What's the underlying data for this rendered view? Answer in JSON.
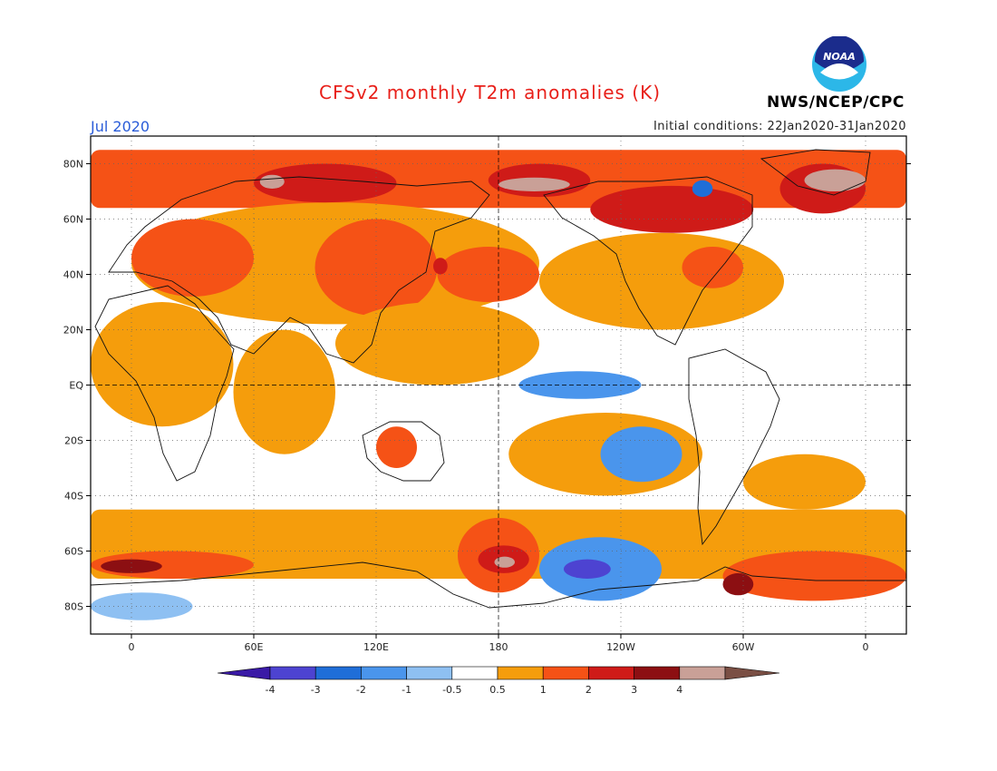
{
  "header": {
    "title": "CFSv2 monthly T2m anomalies (K)",
    "month": "Jul 2020",
    "initial_conditions": "Initial conditions: 22Jan2020-31Jan2020",
    "agency": "NWS/NCEP/CPC",
    "logo_text": "NOAA"
  },
  "map": {
    "projection": "equirectangular",
    "longitude_range": [
      -20,
      380
    ],
    "latitude_range": [
      -90,
      90
    ],
    "lat_ticks": [
      {
        "value": 80,
        "label": "80N"
      },
      {
        "value": 60,
        "label": "60N"
      },
      {
        "value": 40,
        "label": "40N"
      },
      {
        "value": 20,
        "label": "20N"
      },
      {
        "value": 0,
        "label": "EQ"
      },
      {
        "value": -20,
        "label": "20S"
      },
      {
        "value": -40,
        "label": "40S"
      },
      {
        "value": -60,
        "label": "60S"
      },
      {
        "value": -80,
        "label": "80S"
      }
    ],
    "lon_ticks": [
      {
        "value": 0,
        "label": "0"
      },
      {
        "value": 60,
        "label": "60E"
      },
      {
        "value": 120,
        "label": "120E"
      },
      {
        "value": 180,
        "label": "180"
      },
      {
        "value": 240,
        "label": "120W"
      },
      {
        "value": 300,
        "label": "60W"
      },
      {
        "value": 360,
        "label": "0"
      }
    ],
    "grid": "dotted",
    "colors": {
      "-4": "#3a1aa6",
      "-3": "#4d43d1",
      "-2": "#1f6ed8",
      "-1": "#4a95ec",
      "-0.5": "#8ec0f2",
      "0": "#ffffff",
      "0.5": "#f59d0c",
      "1": "#f55216",
      "2": "#cf1b18",
      "3": "#8c0f12",
      "4": "#c9a097",
      "max": "#7a4f44"
    },
    "anomaly_regions": [
      {
        "name": "arctic-band",
        "class": "1",
        "lon": [
          -20,
          380
        ],
        "lat": [
          64,
          85
        ]
      },
      {
        "name": "siberia-strong",
        "class": "2",
        "lon": [
          60,
          130
        ],
        "lat": [
          66,
          80
        ]
      },
      {
        "name": "siberia-extreme",
        "class": "4",
        "lon": [
          63,
          75
        ],
        "lat": [
          71,
          76
        ]
      },
      {
        "name": "chukchi-strong",
        "class": "2",
        "lon": [
          175,
          225
        ],
        "lat": [
          68,
          80
        ]
      },
      {
        "name": "chukchi-extreme",
        "class": "4",
        "lon": [
          180,
          215
        ],
        "lat": [
          70,
          75
        ]
      },
      {
        "name": "canada-strong",
        "class": "2",
        "lon": [
          225,
          305
        ],
        "lat": [
          55,
          72
        ]
      },
      {
        "name": "hudson-cold",
        "class": "-2",
        "lon": [
          275,
          285
        ],
        "lat": [
          68,
          74
        ]
      },
      {
        "name": "greenland-strong",
        "class": "2",
        "lon": [
          318,
          360
        ],
        "lat": [
          62,
          80
        ]
      },
      {
        "name": "greenland-extreme",
        "class": "4",
        "lon": [
          330,
          360
        ],
        "lat": [
          70,
          78
        ]
      },
      {
        "name": "eurasia-mid",
        "class": "0.5",
        "lon": [
          0,
          200
        ],
        "lat": [
          22,
          66
        ]
      },
      {
        "name": "europe",
        "class": "1",
        "lon": [
          0,
          60
        ],
        "lat": [
          32,
          60
        ]
      },
      {
        "name": "east-asia",
        "class": "1",
        "lon": [
          90,
          150
        ],
        "lat": [
          25,
          60
        ]
      },
      {
        "name": "n-pacific",
        "class": "1",
        "lon": [
          150,
          200
        ],
        "lat": [
          30,
          50
        ]
      },
      {
        "name": "n-pacific-core",
        "class": "2",
        "lon": [
          148,
          155
        ],
        "lat": [
          40,
          46
        ]
      },
      {
        "name": "n-america",
        "class": "0.5",
        "lon": [
          200,
          320
        ],
        "lat": [
          20,
          55
        ]
      },
      {
        "name": "ne-us",
        "class": "1",
        "lon": [
          270,
          300
        ],
        "lat": [
          35,
          50
        ]
      },
      {
        "name": "trop-pacific",
        "class": "0.5",
        "lon": [
          100,
          200
        ],
        "lat": [
          0,
          30
        ]
      },
      {
        "name": "indian-ocean",
        "class": "0.5",
        "lon": [
          50,
          100
        ],
        "lat": [
          -25,
          20
        ]
      },
      {
        "name": "africa",
        "class": "0.5",
        "lon": [
          -20,
          50
        ],
        "lat": [
          -15,
          30
        ]
      },
      {
        "name": "australia",
        "class": "1",
        "lon": [
          120,
          140
        ],
        "lat": [
          -30,
          -15
        ]
      },
      {
        "name": "south-pacific",
        "class": "0.5",
        "lon": [
          185,
          280
        ],
        "lat": [
          -40,
          -10
        ]
      },
      {
        "name": "equatorial-cold",
        "class": "-1",
        "lon": [
          190,
          250
        ],
        "lat": [
          -5,
          5
        ]
      },
      {
        "name": "se-pacific-cold",
        "class": "-1",
        "lon": [
          230,
          270
        ],
        "lat": [
          -35,
          -15
        ]
      },
      {
        "name": "s-atlantic",
        "class": "0.5",
        "lon": [
          300,
          360
        ],
        "lat": [
          -45,
          -25
        ]
      },
      {
        "name": "so-band",
        "class": "0.5",
        "lon": [
          -20,
          380
        ],
        "lat": [
          -70,
          -45
        ]
      },
      {
        "name": "so-africa",
        "class": "1",
        "lon": [
          -20,
          60
        ],
        "lat": [
          -70,
          -60
        ]
      },
      {
        "name": "so-africa-core",
        "class": "3",
        "lon": [
          -15,
          15
        ],
        "lat": [
          -68,
          -63
        ]
      },
      {
        "name": "ross-warm",
        "class": "1",
        "lon": [
          160,
          200
        ],
        "lat": [
          -75,
          -48
        ]
      },
      {
        "name": "ross-core",
        "class": "2",
        "lon": [
          170,
          195
        ],
        "lat": [
          -68,
          -58
        ]
      },
      {
        "name": "ross-extreme",
        "class": "4",
        "lon": [
          178,
          188
        ],
        "lat": [
          -66,
          -62
        ]
      },
      {
        "name": "amundsen-cold",
        "class": "-1",
        "lon": [
          200,
          260
        ],
        "lat": [
          -78,
          -55
        ]
      },
      {
        "name": "amundsen-core",
        "class": "-3",
        "lon": [
          212,
          235
        ],
        "lat": [
          -70,
          -63
        ]
      },
      {
        "name": "weddell-warm",
        "class": "1",
        "lon": [
          290,
          380
        ],
        "lat": [
          -78,
          -60
        ]
      },
      {
        "name": "weddell-core",
        "class": "3",
        "lon": [
          290,
          305
        ],
        "lat": [
          -76,
          -68
        ]
      },
      {
        "name": "antarctic-cold",
        "class": "-0.5",
        "lon": [
          -20,
          30
        ],
        "lat": [
          -85,
          -75
        ]
      }
    ]
  },
  "colorbar": {
    "labels": [
      "-4",
      "-3",
      "-2",
      "-1",
      "-0.5",
      "0.5",
      "1",
      "2",
      "3",
      "4"
    ],
    "swatch_keys": [
      "-4",
      "-3",
      "-2",
      "-1",
      "-0.5",
      "0",
      "0.5",
      "1",
      "2",
      "3",
      "4",
      "max"
    ]
  }
}
